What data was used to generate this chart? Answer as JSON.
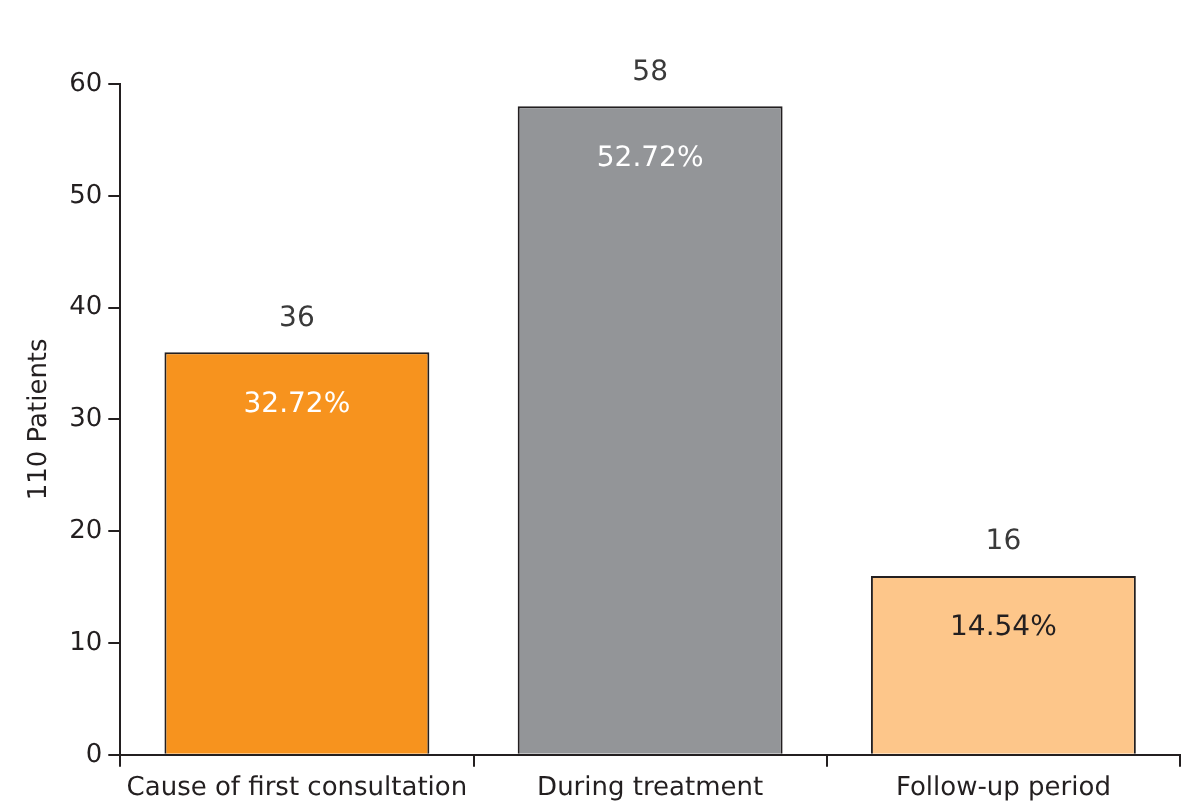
{
  "chart_data": {
    "type": "bar",
    "ylabel": "110 Patients",
    "categories": [
      "Cause of first consultation",
      "During treatment",
      "Follow-up period"
    ],
    "values": [
      36,
      58,
      16
    ],
    "colors": [
      "#f7931e",
      "#939598",
      "#fdc68a"
    ],
    "ylim": [
      0,
      60
    ],
    "yticks": [
      0,
      10,
      20,
      30,
      40,
      50,
      60
    ],
    "grid": false,
    "legend": false,
    "data_labels": true,
    "annotations": [
      "32.72%",
      "52.72%",
      "14.54%"
    ]
  }
}
